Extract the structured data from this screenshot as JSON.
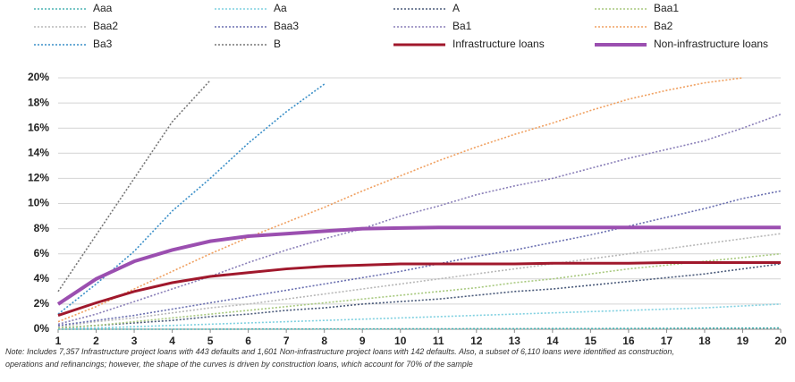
{
  "chart_data": {
    "type": "line",
    "x": [
      1,
      2,
      3,
      4,
      5,
      6,
      7,
      8,
      9,
      10,
      11,
      12,
      13,
      14,
      15,
      16,
      17,
      18,
      19,
      20
    ],
    "xlim": [
      1,
      20
    ],
    "xticks": [
      1,
      2,
      3,
      4,
      5,
      6,
      7,
      8,
      9,
      10,
      11,
      12,
      13,
      14,
      15,
      16,
      17,
      18,
      19,
      20
    ],
    "ylim": [
      0,
      20
    ],
    "yticks": [
      {
        "value": 0,
        "label": "0%"
      },
      {
        "value": 2,
        "label": "2%"
      },
      {
        "value": 4,
        "label": "4%"
      },
      {
        "value": 6,
        "label": "6%"
      },
      {
        "value": 8,
        "label": "8%"
      },
      {
        "value": 10,
        "label": "10%"
      },
      {
        "value": 12,
        "label": "12%"
      },
      {
        "value": 14,
        "label": "14%"
      },
      {
        "value": 16,
        "label": "16%"
      },
      {
        "value": 18,
        "label": "18%"
      },
      {
        "value": 20,
        "label": "20%"
      }
    ],
    "grid": true,
    "series": [
      {
        "name": "Aaa",
        "color": "#4bb3b3",
        "style": "dotted",
        "values": [
          0,
          0,
          0,
          0,
          0,
          0.01,
          0.01,
          0.02,
          0.02,
          0.03,
          0.03,
          0.04,
          0.04,
          0.05,
          0.05,
          0.06,
          0.07,
          0.08,
          0.09,
          0.1
        ]
      },
      {
        "name": "Aa",
        "color": "#7fd0e0",
        "style": "dotted",
        "values": [
          0.05,
          0.1,
          0.2,
          0.3,
          0.4,
          0.5,
          0.6,
          0.7,
          0.8,
          0.9,
          1,
          1.1,
          1.2,
          1.3,
          1.4,
          1.5,
          1.6,
          1.7,
          1.85,
          2
        ]
      },
      {
        "name": "A",
        "color": "#4a5a7a",
        "style": "dotted",
        "values": [
          0.1,
          0.3,
          0.5,
          0.7,
          1,
          1.2,
          1.5,
          1.7,
          2,
          2.2,
          2.4,
          2.7,
          3,
          3.2,
          3.5,
          3.8,
          4.1,
          4.4,
          4.8,
          5.2
        ]
      },
      {
        "name": "Baa1",
        "color": "#a8c97f",
        "style": "dotted",
        "values": [
          0.1,
          0.3,
          0.6,
          0.9,
          1.2,
          1.5,
          1.8,
          2.1,
          2.4,
          2.7,
          3,
          3.3,
          3.7,
          4,
          4.4,
          4.8,
          5.1,
          5.4,
          5.7,
          6
        ]
      },
      {
        "name": "Baa2",
        "color": "#b8b8b8",
        "style": "dotted",
        "values": [
          0.2,
          0.6,
          0.9,
          1.3,
          1.7,
          2,
          2.4,
          2.8,
          3.2,
          3.6,
          4,
          4.4,
          4.8,
          5.2,
          5.6,
          6,
          6.4,
          6.8,
          7.2,
          7.6
        ]
      },
      {
        "name": "Baa3",
        "color": "#6a6fb0",
        "style": "dotted",
        "values": [
          0.3,
          0.7,
          1.1,
          1.6,
          2.1,
          2.6,
          3.1,
          3.6,
          4.1,
          4.6,
          5.2,
          5.8,
          6.3,
          6.9,
          7.5,
          8.2,
          8.9,
          9.6,
          10.4,
          11
        ]
      },
      {
        "name": "Ba1",
        "color": "#8a7fb8",
        "style": "dotted",
        "values": [
          0.4,
          1.2,
          2.2,
          3.2,
          4.2,
          5.3,
          6.3,
          7.2,
          8,
          9,
          9.8,
          10.7,
          11.4,
          12,
          12.8,
          13.6,
          14.3,
          15,
          16,
          17.1
        ]
      },
      {
        "name": "Ba2",
        "color": "#f0a060",
        "style": "dotted",
        "values": [
          0.6,
          1.8,
          3.2,
          4.6,
          6,
          7.3,
          8.5,
          9.7,
          11,
          12.2,
          13.4,
          14.5,
          15.5,
          16.4,
          17.4,
          18.3,
          19,
          19.6,
          20,
          null
        ]
      },
      {
        "name": "Ba3",
        "color": "#3a8fc8",
        "style": "dotted",
        "values": [
          1.2,
          3.6,
          6.2,
          9.4,
          12,
          14.8,
          17.3,
          19.5,
          null,
          null,
          null,
          null,
          null,
          null,
          null,
          null,
          null,
          null,
          null,
          null
        ]
      },
      {
        "name": "B",
        "color": "#777777",
        "style": "dotted",
        "values": [
          3,
          7.5,
          12,
          16.5,
          19.8,
          null,
          null,
          null,
          null,
          null,
          null,
          null,
          null,
          null,
          null,
          null,
          null,
          null,
          null,
          null
        ]
      },
      {
        "name": "Infrastructure loans",
        "color": "#a0182c",
        "style": "solid",
        "values": [
          1.1,
          2.1,
          3,
          3.7,
          4.2,
          4.5,
          4.8,
          5,
          5.1,
          5.2,
          5.2,
          5.2,
          5.2,
          5.25,
          5.25,
          5.25,
          5.3,
          5.3,
          5.3,
          5.3
        ]
      },
      {
        "name": "Non-infrastructure loans",
        "color": "#9b4fb0",
        "style": "solid",
        "values": [
          2,
          4,
          5.4,
          6.3,
          7,
          7.4,
          7.6,
          7.8,
          8,
          8.05,
          8.1,
          8.1,
          8.1,
          8.1,
          8.1,
          8.1,
          8.1,
          8.1,
          8.1,
          8.1
        ]
      }
    ],
    "note": [
      "Note: Includes 7,357 Infrastructure project loans with 443 defaults and 1,601 Non-infrastructure project loans with 142 defaults. Also, a subset of 6,110 loans were identified as construction,",
      "operations and refinancings; however, the shape of the curves is driven by construction loans, which account for 70% of the sample"
    ]
  }
}
